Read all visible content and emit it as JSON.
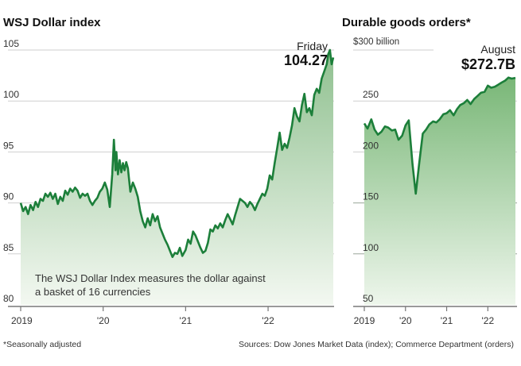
{
  "chart_data": [
    {
      "type": "area",
      "title": "WSJ Dollar index",
      "xlabel": "",
      "ylabel": "",
      "ylim": [
        80,
        105
      ],
      "y_ticks": [
        "105",
        "100",
        "95",
        "90",
        "85",
        "80"
      ],
      "y_tick_values": [
        105,
        100,
        95,
        90,
        85,
        80
      ],
      "x_ticks": [
        "2019",
        "'20",
        "'21",
        "'22"
      ],
      "x_tick_values": [
        2019,
        2020,
        2021,
        2022
      ],
      "xlim": [
        2019,
        2022.8
      ],
      "grid": true,
      "callout": {
        "label": "Friday",
        "value": "104.27"
      },
      "annotation": [
        "The WSJ Dollar Index measures the dollar against",
        "a basket of 16 currencies"
      ],
      "line_color": "#1c7f3a",
      "fill_color_top": "#8fc08f",
      "fill_color_bottom": "#f3f8f1",
      "series": [
        {
          "name": "WSJ Dollar Index",
          "x": [
            2019.0,
            2019.03,
            2019.06,
            2019.09,
            2019.12,
            2019.15,
            2019.18,
            2019.21,
            2019.24,
            2019.27,
            2019.3,
            2019.33,
            2019.36,
            2019.39,
            2019.42,
            2019.45,
            2019.48,
            2019.51,
            2019.54,
            2019.57,
            2019.6,
            2019.63,
            2019.66,
            2019.69,
            2019.72,
            2019.75,
            2019.78,
            2019.81,
            2019.84,
            2019.87,
            2019.9,
            2019.93,
            2019.96,
            2019.99,
            2020.02,
            2020.05,
            2020.08,
            2020.11,
            2020.13,
            2020.15,
            2020.16,
            2020.18,
            2020.2,
            2020.22,
            2020.24,
            2020.26,
            2020.28,
            2020.3,
            2020.33,
            2020.36,
            2020.39,
            2020.42,
            2020.45,
            2020.48,
            2020.51,
            2020.54,
            2020.57,
            2020.6,
            2020.63,
            2020.66,
            2020.69,
            2020.72,
            2020.75,
            2020.78,
            2020.81,
            2020.84,
            2020.87,
            2020.9,
            2020.93,
            2020.96,
            2021.0,
            2021.03,
            2021.06,
            2021.09,
            2021.12,
            2021.15,
            2021.18,
            2021.21,
            2021.24,
            2021.27,
            2021.3,
            2021.33,
            2021.36,
            2021.39,
            2021.42,
            2021.45,
            2021.48,
            2021.51,
            2021.54,
            2021.57,
            2021.6,
            2021.63,
            2021.66,
            2021.69,
            2021.72,
            2021.75,
            2021.78,
            2021.81,
            2021.84,
            2021.87,
            2021.9,
            2021.93,
            2021.96,
            2021.99,
            2022.02,
            2022.05,
            2022.08,
            2022.11,
            2022.14,
            2022.17,
            2022.2,
            2022.23,
            2022.26,
            2022.29,
            2022.32,
            2022.35,
            2022.38,
            2022.41,
            2022.44,
            2022.47,
            2022.5,
            2022.53,
            2022.56,
            2022.59,
            2022.62,
            2022.65,
            2022.68,
            2022.71,
            2022.73,
            2022.75,
            2022.77,
            2022.79
          ],
          "values": [
            90.0,
            89.2,
            89.6,
            88.9,
            89.8,
            89.3,
            90.1,
            89.6,
            90.4,
            90.2,
            90.9,
            90.6,
            91.0,
            90.4,
            90.9,
            89.9,
            90.6,
            90.2,
            91.2,
            90.8,
            91.4,
            91.1,
            91.5,
            91.2,
            90.5,
            90.9,
            90.7,
            90.9,
            90.2,
            89.8,
            90.2,
            90.5,
            91.1,
            91.4,
            92.0,
            91.3,
            89.6,
            92.8,
            96.2,
            93.2,
            95.0,
            92.8,
            94.2,
            93.0,
            93.9,
            93.2,
            94.0,
            93.4,
            91.1,
            92.0,
            91.4,
            90.6,
            89.2,
            88.2,
            87.6,
            88.5,
            87.8,
            88.9,
            88.2,
            88.7,
            87.6,
            87.0,
            86.4,
            85.9,
            85.3,
            84.7,
            85.1,
            85.0,
            85.6,
            84.8,
            85.4,
            86.4,
            86.0,
            87.2,
            86.8,
            86.2,
            85.6,
            85.1,
            85.3,
            86.1,
            87.4,
            87.2,
            87.8,
            87.5,
            88.0,
            87.6,
            88.3,
            88.9,
            88.4,
            87.9,
            88.8,
            89.6,
            90.4,
            90.2,
            90.0,
            89.6,
            90.1,
            89.8,
            89.3,
            89.9,
            90.4,
            90.9,
            90.7,
            91.4,
            92.7,
            92.3,
            93.9,
            95.4,
            96.9,
            95.2,
            95.8,
            95.4,
            96.4,
            97.6,
            99.3,
            98.5,
            98.0,
            99.6,
            100.7,
            98.9,
            99.3,
            98.6,
            100.6,
            101.2,
            100.8,
            102.2,
            102.9,
            103.6,
            104.6,
            105.0,
            103.6,
            104.27
          ]
        }
      ]
    },
    {
      "type": "area",
      "title": "Durable goods orders*",
      "unit_label": "$300 billion",
      "xlabel": "",
      "ylabel": "",
      "ylim": [
        50,
        300
      ],
      "y_ticks": [
        "250",
        "200",
        "150",
        "100",
        "50"
      ],
      "y_tick_values": [
        250,
        200,
        150,
        100,
        50
      ],
      "x_ticks": [
        "2019",
        "'20",
        "'21",
        "'22"
      ],
      "x_tick_values": [
        2019,
        2020,
        2021,
        2022
      ],
      "xlim": [
        2019,
        2022.67
      ],
      "grid": true,
      "callout": {
        "label": "August",
        "value": "$272.7B"
      },
      "line_color": "#1c7f3a",
      "fill_color_top": "#79b777",
      "fill_color_bottom": "#eef6ec",
      "series": [
        {
          "name": "Durable goods orders (monthly, seasonally adjusted)",
          "x": [
            2019.0,
            2019.08,
            2019.17,
            2019.25,
            2019.33,
            2019.42,
            2019.5,
            2019.58,
            2019.67,
            2019.75,
            2019.83,
            2019.92,
            2020.0,
            2020.08,
            2020.17,
            2020.25,
            2020.33,
            2020.42,
            2020.5,
            2020.58,
            2020.67,
            2020.75,
            2020.83,
            2020.92,
            2021.0,
            2021.08,
            2021.17,
            2021.25,
            2021.33,
            2021.42,
            2021.5,
            2021.58,
            2021.67,
            2021.75,
            2021.83,
            2021.92,
            2022.0,
            2022.08,
            2022.17,
            2022.25,
            2022.33,
            2022.42,
            2022.5,
            2022.58,
            2022.67
          ],
          "values": [
            228,
            223,
            232,
            222,
            217,
            220,
            225,
            224,
            221,
            222,
            212,
            216,
            226,
            231,
            188,
            159,
            188,
            218,
            222,
            227,
            230,
            229,
            232,
            237,
            238,
            241,
            236,
            242,
            246,
            248,
            251,
            247,
            252,
            255,
            258,
            259,
            265,
            263,
            264,
            266,
            268,
            270,
            273,
            272,
            272.7
          ]
        }
      ]
    }
  ],
  "footer": {
    "note": "*Seasonally adjusted",
    "sources": "Sources: Dow Jones Market Data (index); Commerce Department (orders)"
  }
}
